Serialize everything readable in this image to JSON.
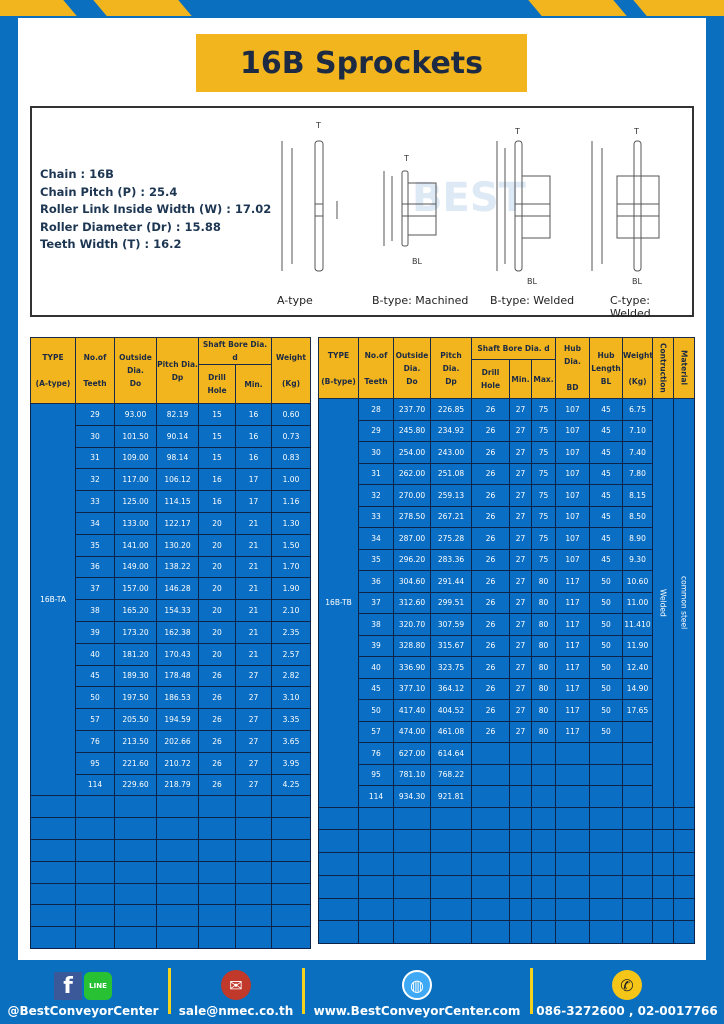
{
  "title": "16B Sprockets",
  "specs": [
    "Chain  :  16B",
    "Chain Pitch (P)  :  25.4",
    "Roller Link Inside Width (W)  :  17.02",
    "Roller Diameter (Dr) : 15.88",
    "Teeth Width (T)  :  16.2"
  ],
  "diagram_labels": [
    "A-type",
    "B-type: Machined",
    "B-type: Welded",
    "C-type: Welded"
  ],
  "dim_labels": {
    "t": "T",
    "do": "Do",
    "dp": "Dp",
    "d": "d",
    "bd": "BD",
    "bl": "BL"
  },
  "watermark": "BEST CONVEYOR CENTER",
  "table_a": {
    "headers": {
      "type": "TYPE",
      "type_sub": "(A-type)",
      "teeth": "No.of",
      "teeth_sub": "Teeth",
      "do": "Outside",
      "do_sub": "Dia.",
      "do_sub2": "Do",
      "dp": "Pitch Dia.",
      "dp_sub": "Dp",
      "bore": "Shaft Bore Dia. d",
      "drill": "Drill Hole",
      "min": "Min.",
      "weight": "Weight",
      "weight_sub": "(Kg)"
    },
    "type": "16B-TA",
    "rows": [
      [
        "29",
        "93.00",
        "82.19",
        "15",
        "16",
        "0.60"
      ],
      [
        "30",
        "101.50",
        "90.14",
        "15",
        "16",
        "0.73"
      ],
      [
        "31",
        "109.00",
        "98.14",
        "15",
        "16",
        "0.83"
      ],
      [
        "32",
        "117.00",
        "106.12",
        "16",
        "17",
        "1.00"
      ],
      [
        "33",
        "125.00",
        "114.15",
        "16",
        "17",
        "1.16"
      ],
      [
        "34",
        "133.00",
        "122.17",
        "20",
        "21",
        "1.30"
      ],
      [
        "35",
        "141.00",
        "130.20",
        "20",
        "21",
        "1.50"
      ],
      [
        "36",
        "149.00",
        "138.22",
        "20",
        "21",
        "1.70"
      ],
      [
        "37",
        "157.00",
        "146.28",
        "20",
        "21",
        "1.90"
      ],
      [
        "38",
        "165.20",
        "154.33",
        "20",
        "21",
        "2.10"
      ],
      [
        "39",
        "173.20",
        "162.38",
        "20",
        "21",
        "2.35"
      ],
      [
        "40",
        "181.20",
        "170.43",
        "20",
        "21",
        "2.57"
      ],
      [
        "45",
        "189.30",
        "178.48",
        "26",
        "27",
        "2.82"
      ],
      [
        "50",
        "197.50",
        "186.53",
        "26",
        "27",
        "3.10"
      ],
      [
        "57",
        "205.50",
        "194.59",
        "26",
        "27",
        "3.35"
      ],
      [
        "76",
        "213.50",
        "202.66",
        "26",
        "27",
        "3.65"
      ],
      [
        "95",
        "221.60",
        "210.72",
        "26",
        "27",
        "3.95"
      ],
      [
        "114",
        "229.60",
        "218.79",
        "26",
        "27",
        "4.25"
      ]
    ]
  },
  "table_b": {
    "headers": {
      "type": "TYPE",
      "type_sub": "(B-type)",
      "teeth": "No.of",
      "teeth_sub": "Teeth",
      "do": "Outside",
      "do_sub": "Dia.",
      "do_sub2": "Do",
      "dp": "Pitch Dia.",
      "dp_sub": "Dp",
      "bore": "Shaft Bore Dia. d",
      "drill": "Drill Hole",
      "min": "Min.",
      "max": "Max.",
      "bd": "Hub Dia.",
      "bd_sub": "BD",
      "bl": "Hub",
      "bl_sub": "Length",
      "bl_sub2": "BL",
      "weight": "Weight",
      "weight_sub": "(Kg)",
      "construction": "Contruction",
      "material": "Material"
    },
    "type": "16B-TB",
    "construction": "Welded",
    "material": "common steel",
    "rows": [
      [
        "28",
        "237.70",
        "226.85",
        "26",
        "27",
        "75",
        "107",
        "45",
        "6.75"
      ],
      [
        "29",
        "245.80",
        "234.92",
        "26",
        "27",
        "75",
        "107",
        "45",
        "7.10"
      ],
      [
        "30",
        "254.00",
        "243.00",
        "26",
        "27",
        "75",
        "107",
        "45",
        "7.40"
      ],
      [
        "31",
        "262.00",
        "251.08",
        "26",
        "27",
        "75",
        "107",
        "45",
        "7.80"
      ],
      [
        "32",
        "270.00",
        "259.13",
        "26",
        "27",
        "75",
        "107",
        "45",
        "8.15"
      ],
      [
        "33",
        "278.50",
        "267.21",
        "26",
        "27",
        "75",
        "107",
        "45",
        "8.50"
      ],
      [
        "34",
        "287.00",
        "275.28",
        "26",
        "27",
        "75",
        "107",
        "45",
        "8.90"
      ],
      [
        "35",
        "296.20",
        "283.36",
        "26",
        "27",
        "75",
        "107",
        "45",
        "9.30"
      ],
      [
        "36",
        "304.60",
        "291.44",
        "26",
        "27",
        "80",
        "117",
        "50",
        "10.60"
      ],
      [
        "37",
        "312.60",
        "299.51",
        "26",
        "27",
        "80",
        "117",
        "50",
        "11.00"
      ],
      [
        "38",
        "320.70",
        "307.59",
        "26",
        "27",
        "80",
        "117",
        "50",
        "11.410"
      ],
      [
        "39",
        "328.80",
        "315.67",
        "26",
        "27",
        "80",
        "117",
        "50",
        "11.90"
      ],
      [
        "40",
        "336.90",
        "323.75",
        "26",
        "27",
        "80",
        "117",
        "50",
        "12.40"
      ],
      [
        "45",
        "377.10",
        "364.12",
        "26",
        "27",
        "80",
        "117",
        "50",
        "14.90"
      ],
      [
        "50",
        "417.40",
        "404.52",
        "26",
        "27",
        "80",
        "117",
        "50",
        "17.65"
      ],
      [
        "57",
        "474.00",
        "461.08",
        "26",
        "27",
        "80",
        "117",
        "50",
        ""
      ],
      [
        "76",
        "627.00",
        "614.64",
        "",
        "",
        "",
        "",
        "",
        ""
      ],
      [
        "95",
        "781.10",
        "768.22",
        "",
        "",
        "",
        "",
        "",
        ""
      ],
      [
        "114",
        "934.30",
        "921.81",
        "",
        "",
        "",
        "",
        "",
        ""
      ]
    ]
  },
  "footer": {
    "social": "@BestConveyorCenter",
    "line_badge": "LINE",
    "email": "sale@nmec.co.th",
    "website": "www.BestConveyorCenter.com",
    "phone": "086-3272600 , 02-0017766"
  },
  "colors": {
    "blue": "#0a6fc4",
    "yellow": "#f2b51d",
    "navy": "#1c2a44"
  }
}
